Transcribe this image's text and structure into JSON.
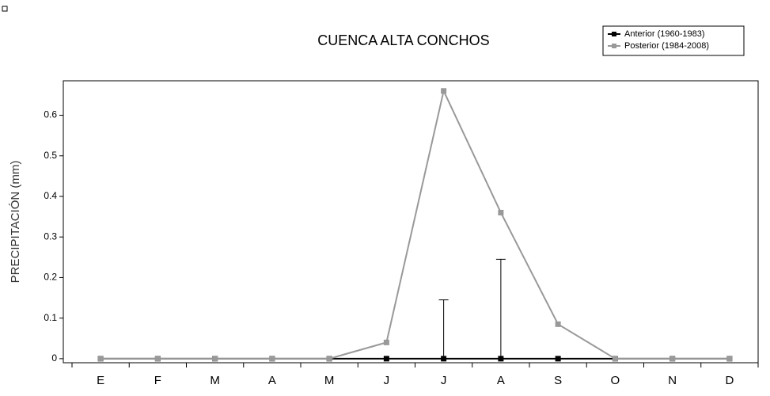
{
  "chart_data": {
    "type": "line",
    "title": "CUENCA ALTA CONCHOS",
    "y_label": "PRECIPITACIÓN (mm)",
    "categories": [
      "E",
      "F",
      "M",
      "A",
      "M",
      "J",
      "J",
      "A",
      "S",
      "O",
      "N",
      "D"
    ],
    "series": [
      {
        "name": "Anterior (1960-1983)",
        "color": "#000000",
        "values": [
          0,
          0,
          0,
          0,
          0,
          0,
          0,
          0,
          0,
          0,
          0,
          0
        ],
        "errors": [
          null,
          null,
          null,
          null,
          null,
          null,
          0.145,
          0.245,
          null,
          null,
          null,
          null
        ]
      },
      {
        "name": "Posterior (1984-2008)",
        "color": "#999999",
        "values": [
          0,
          0,
          0,
          0,
          0,
          0.04,
          0.66,
          0.36,
          0.085,
          0,
          0,
          0
        ]
      }
    ],
    "ylim": [
      -0.01,
      0.685
    ],
    "yticks": [
      0,
      0.1,
      0.2,
      0.3,
      0.4,
      0.5,
      0.6
    ],
    "legend": "top-right"
  }
}
